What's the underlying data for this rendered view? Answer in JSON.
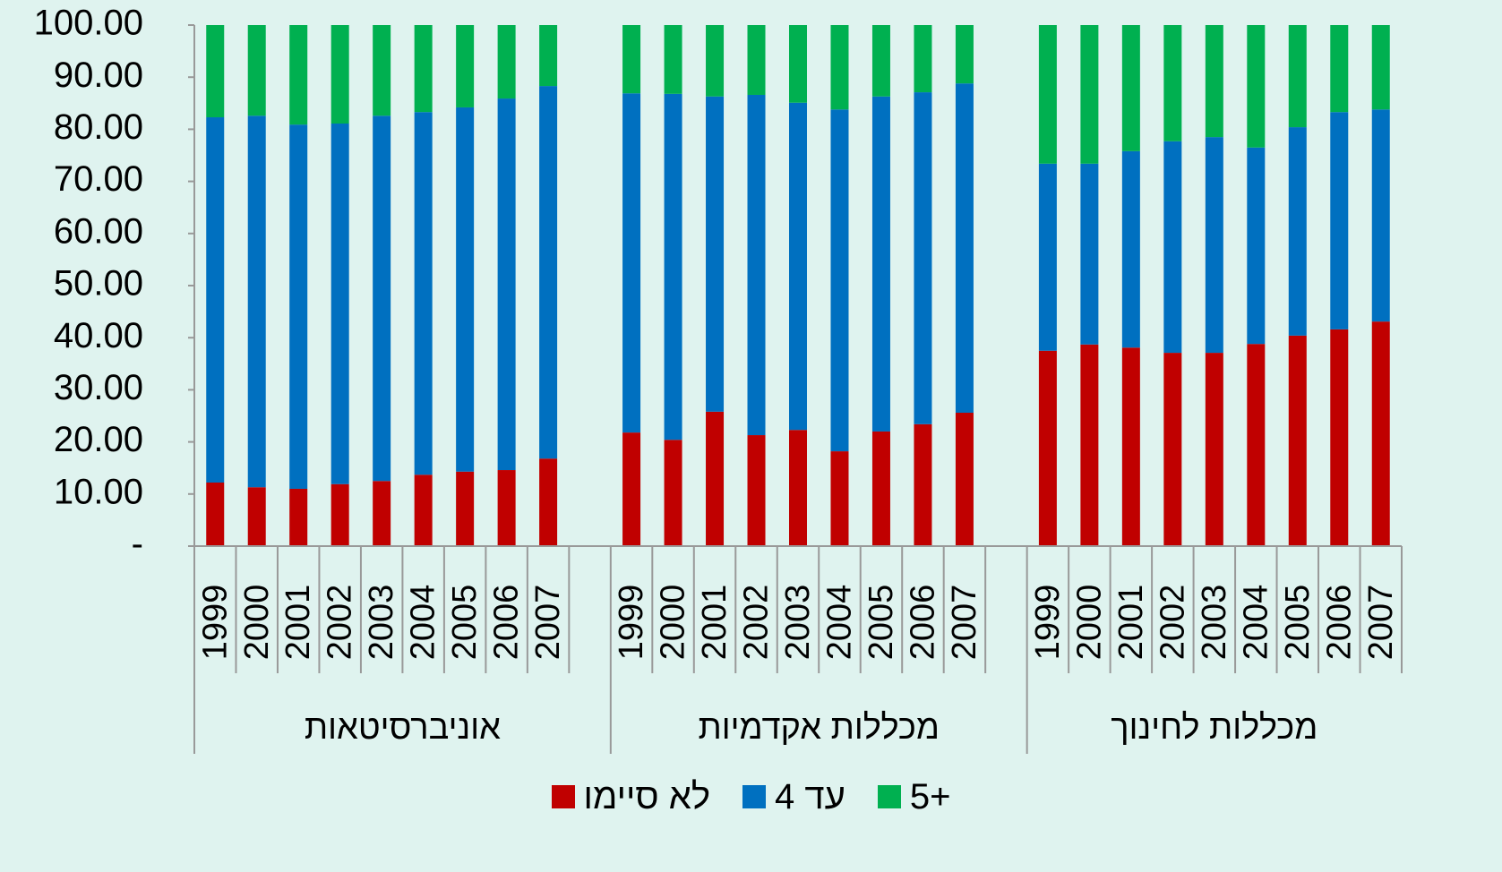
{
  "chart_data": {
    "type": "stacked_bar",
    "category_groups": [
      "אוניברסיטאות",
      "מכללות אקדמיות",
      "מכללות לחינוך"
    ],
    "categories": [
      "1999",
      "2000",
      "2001",
      "2002",
      "2003",
      "2004",
      "2005",
      "2006",
      "2007",
      "1999",
      "2000",
      "2001",
      "2002",
      "2003",
      "2004",
      "2005",
      "2006",
      "2007",
      "1999",
      "2000",
      "2001",
      "2002",
      "2003",
      "2004",
      "2005",
      "2006",
      "2007"
    ],
    "series": [
      {
        "name": "לא סיימו",
        "color": "#c00000",
        "values": [
          12.2,
          11.3,
          11.0,
          11.9,
          12.5,
          13.7,
          14.3,
          14.6,
          16.8,
          21.8,
          20.4,
          25.8,
          21.3,
          22.3,
          18.2,
          22.0,
          23.4,
          25.6,
          37.5,
          38.7,
          38.1,
          37.1,
          37.1,
          38.8,
          40.4,
          41.6,
          43.1
        ]
      },
      {
        "name": "עד 4",
        "color": "#0070c0",
        "values": [
          70.1,
          71.3,
          69.9,
          69.2,
          70.1,
          69.6,
          69.9,
          71.3,
          71.5,
          65.1,
          66.4,
          60.5,
          65.3,
          62.8,
          65.6,
          64.3,
          63.7,
          63.2,
          35.9,
          34.7,
          37.7,
          40.6,
          41.4,
          37.7,
          40.0,
          41.7,
          40.7
        ]
      },
      {
        "name": "5+",
        "color": "#00b050",
        "values": [
          17.7,
          17.4,
          19.1,
          18.9,
          17.4,
          16.7,
          15.8,
          14.1,
          11.7,
          13.1,
          13.2,
          13.7,
          13.4,
          14.9,
          16.2,
          13.7,
          12.9,
          11.2,
          26.6,
          26.6,
          24.2,
          22.3,
          21.5,
          23.5,
          19.6,
          16.7,
          16.2
        ]
      }
    ],
    "ylim": [
      0,
      100
    ],
    "yticks": [
      {
        "value": 0,
        "label": "-"
      },
      {
        "value": 10,
        "label": "10.00"
      },
      {
        "value": 20,
        "label": "20.00"
      },
      {
        "value": 30,
        "label": "30.00"
      },
      {
        "value": 40,
        "label": "40.00"
      },
      {
        "value": 50,
        "label": "50.00"
      },
      {
        "value": 60,
        "label": "60.00"
      },
      {
        "value": 70,
        "label": "70.00"
      },
      {
        "value": 80,
        "label": "80.00"
      },
      {
        "value": 90,
        "label": "90.00"
      },
      {
        "value": 100,
        "label": "100.00"
      }
    ],
    "legend": "bottom"
  }
}
